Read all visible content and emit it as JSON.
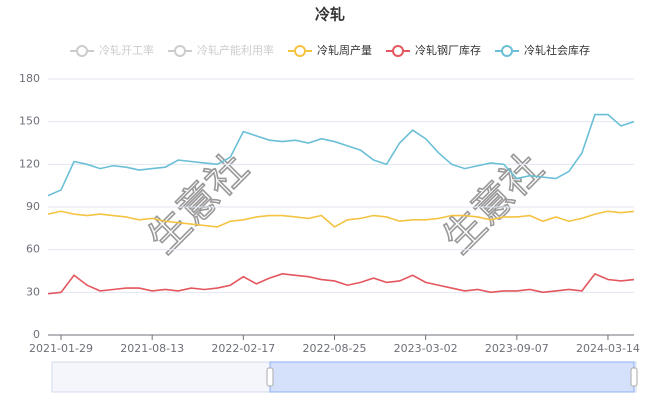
{
  "chart_data": {
    "type": "line",
    "title": "冷轧",
    "watermark": "生意社",
    "inactive_legend": [
      "冷轧开工率",
      "冷轧产能利用率"
    ],
    "inactive_color": "#cccccc",
    "categories": [
      null,
      "2021-01-29",
      null,
      null,
      null,
      null,
      null,
      null,
      "2021-08-13",
      null,
      null,
      null,
      null,
      null,
      null,
      "2022-02-17",
      null,
      null,
      null,
      null,
      null,
      null,
      "2022-08-25",
      null,
      null,
      null,
      null,
      null,
      null,
      "2023-03-02",
      null,
      null,
      null,
      null,
      null,
      null,
      "2023-09-07",
      null,
      null,
      null,
      null,
      null,
      null,
      "2024-03-14",
      null,
      null
    ],
    "series": [
      {
        "name": "冷轧周产量",
        "color": "#f5c342",
        "values": [
          85,
          87,
          85,
          84,
          85,
          84,
          83,
          81,
          82,
          80,
          79,
          78,
          77,
          76,
          80,
          81,
          83,
          84,
          84,
          83,
          82,
          84,
          76,
          81,
          82,
          84,
          83,
          80,
          81,
          81,
          82,
          84,
          84,
          83,
          81,
          83,
          83,
          84,
          80,
          83,
          80,
          82,
          85,
          87,
          86,
          87
        ]
      },
      {
        "name": "冷轧钢厂库存",
        "color": "#e4575e",
        "values": [
          29,
          30,
          42,
          35,
          31,
          32,
          33,
          33,
          31,
          32,
          31,
          33,
          32,
          33,
          35,
          41,
          36,
          40,
          43,
          42,
          41,
          39,
          38,
          35,
          37,
          40,
          37,
          38,
          42,
          37,
          35,
          33,
          31,
          32,
          30,
          31,
          31,
          32,
          30,
          31,
          32,
          31,
          43,
          39,
          38,
          39
        ]
      },
      {
        "name": "冷轧社会库存",
        "color": "#6bbfd6",
        "values": [
          98,
          102,
          122,
          120,
          117,
          119,
          118,
          116,
          117,
          118,
          123,
          122,
          121,
          120,
          125,
          143,
          140,
          137,
          136,
          137,
          135,
          138,
          136,
          133,
          130,
          123,
          120,
          135,
          144,
          138,
          128,
          120,
          117,
          119,
          121,
          120,
          110,
          112,
          111,
          110,
          115,
          128,
          155,
          155,
          147,
          150
        ]
      }
    ],
    "ylim": [
      0,
      180
    ],
    "yticks": [
      0,
      30,
      60,
      90,
      120,
      150,
      180
    ],
    "grid": true
  }
}
